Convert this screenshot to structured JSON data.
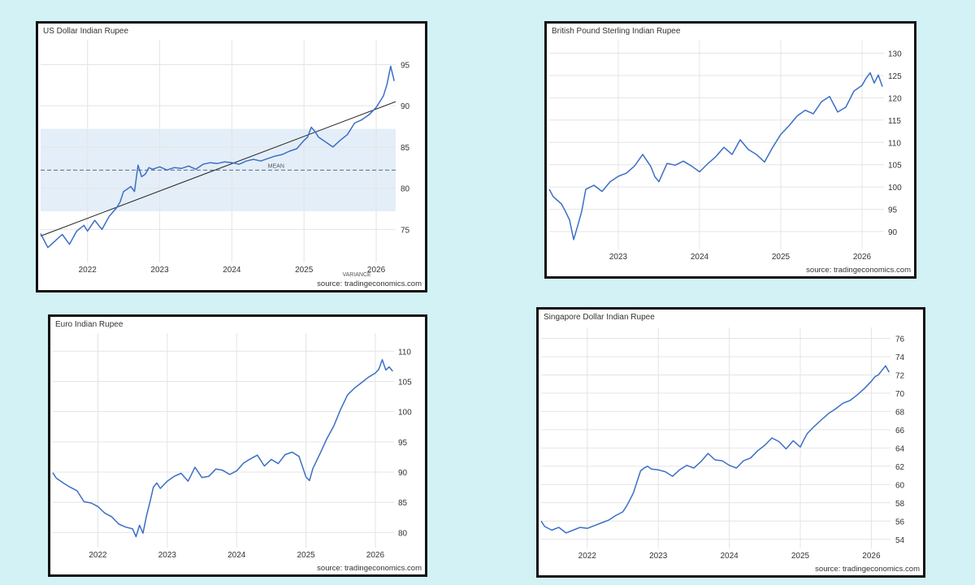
{
  "source_label": "source: tradingeconomics.com",
  "line_color": "#3a6fc4",
  "chart_data": [
    {
      "type": "line",
      "title": "US Dollar Indian Rupee",
      "x_tick_labels": [
        "2022",
        "2023",
        "2024",
        "2025",
        "2026"
      ],
      "y_ticks": [
        75,
        80,
        85,
        90,
        95
      ],
      "ylim": [
        71,
        98
      ],
      "xlim": [
        2021.35,
        2026.27
      ],
      "grid": true,
      "series": [
        {
          "x": [
            2021.35,
            2021.45,
            2021.55,
            2021.65,
            2021.75,
            2021.85,
            2021.95,
            2022.0,
            2022.1,
            2022.2,
            2022.3,
            2022.4,
            2022.45,
            2022.5,
            2022.55,
            2022.6,
            2022.65,
            2022.7,
            2022.75,
            2022.8,
            2022.85,
            2022.9,
            2023.0,
            2023.1,
            2023.2,
            2023.3,
            2023.4,
            2023.5,
            2023.6,
            2023.7,
            2023.8,
            2023.9,
            2024.0,
            2024.1,
            2024.2,
            2024.3,
            2024.4,
            2024.5,
            2024.6,
            2024.7,
            2024.8,
            2024.9,
            2025.0,
            2025.05,
            2025.1,
            2025.15,
            2025.2,
            2025.3,
            2025.4,
            2025.5,
            2025.6,
            2025.7,
            2025.8,
            2025.9,
            2026.0,
            2026.05,
            2026.1,
            2026.15,
            2026.2,
            2026.25
          ],
          "y": [
            74.5,
            72.8,
            73.6,
            74.4,
            73.2,
            74.8,
            75.5,
            74.8,
            76.1,
            75.0,
            76.6,
            77.6,
            78.3,
            79.6,
            79.9,
            80.2,
            79.6,
            82.8,
            81.4,
            81.7,
            82.5,
            82.3,
            82.6,
            82.2,
            82.5,
            82.4,
            82.7,
            82.3,
            82.9,
            83.1,
            83.0,
            83.2,
            83.1,
            82.9,
            83.3,
            83.5,
            83.3,
            83.6,
            83.9,
            84.1,
            84.5,
            84.8,
            85.8,
            86.2,
            87.4,
            86.9,
            86.2,
            85.6,
            85.0,
            85.8,
            86.5,
            87.9,
            88.3,
            88.9,
            89.8,
            90.5,
            91.2,
            92.6,
            94.8,
            93.0
          ]
        }
      ],
      "trendline": {
        "x": [
          2021.35,
          2026.27
        ],
        "y": [
          74.2,
          90.5
        ]
      },
      "mean": {
        "value": 82.2,
        "label": "MEAN"
      },
      "variance_band": {
        "low": 77.2,
        "high": 87.2,
        "label": "VARIANCE"
      }
    },
    {
      "type": "line",
      "title": "British Pound Sterling Indian Rupee",
      "x_tick_labels": [
        "2023",
        "2024",
        "2025",
        "2026"
      ],
      "y_ticks": [
        90,
        95,
        100,
        105,
        110,
        115,
        120,
        125,
        130
      ],
      "ylim": [
        86,
        133
      ],
      "xlim": [
        2022.15,
        2026.27
      ],
      "grid": true,
      "series": [
        {
          "x": [
            2022.15,
            2022.2,
            2022.3,
            2022.35,
            2022.4,
            2022.45,
            2022.5,
            2022.55,
            2022.6,
            2022.7,
            2022.8,
            2022.9,
            2023.0,
            2023.1,
            2023.2,
            2023.3,
            2023.4,
            2023.45,
            2023.5,
            2023.6,
            2023.7,
            2023.8,
            2023.9,
            2024.0,
            2024.1,
            2024.2,
            2024.3,
            2024.4,
            2024.5,
            2024.6,
            2024.7,
            2024.8,
            2024.9,
            2025.0,
            2025.1,
            2025.2,
            2025.3,
            2025.4,
            2025.5,
            2025.6,
            2025.7,
            2025.8,
            2025.9,
            2026.0,
            2026.05,
            2026.1,
            2026.15,
            2026.2,
            2026.25
          ],
          "y": [
            99.5,
            97.8,
            96.2,
            94.5,
            92.6,
            88.2,
            91.3,
            94.6,
            99.5,
            100.4,
            99.0,
            101.2,
            102.4,
            103.1,
            104.7,
            107.3,
            104.6,
            102.3,
            101.2,
            105.3,
            104.9,
            105.8,
            104.7,
            103.4,
            105.2,
            106.8,
            108.9,
            107.3,
            110.6,
            108.4,
            107.3,
            105.6,
            108.9,
            111.8,
            113.7,
            115.9,
            117.2,
            116.4,
            119.1,
            120.3,
            116.8,
            117.9,
            121.5,
            122.8,
            124.4,
            125.6,
            123.3,
            125.1,
            122.5
          ]
        }
      ]
    },
    {
      "type": "line",
      "title": "Euro Indian Rupee",
      "x_tick_labels": [
        "2022",
        "2023",
        "2024",
        "2025",
        "2026"
      ],
      "y_ticks": [
        80,
        85,
        90,
        95,
        100,
        105,
        110
      ],
      "ylim": [
        77.5,
        113
      ],
      "xlim": [
        2021.35,
        2026.27
      ],
      "grid": true,
      "series": [
        {
          "x": [
            2021.35,
            2021.4,
            2021.5,
            2021.6,
            2021.7,
            2021.8,
            2021.9,
            2022.0,
            2022.1,
            2022.2,
            2022.3,
            2022.4,
            2022.5,
            2022.55,
            2022.6,
            2022.65,
            2022.7,
            2022.75,
            2022.8,
            2022.85,
            2022.9,
            2023.0,
            2023.1,
            2023.2,
            2023.3,
            2023.4,
            2023.5,
            2023.6,
            2023.7,
            2023.8,
            2023.9,
            2024.0,
            2024.1,
            2024.2,
            2024.3,
            2024.4,
            2024.5,
            2024.6,
            2024.7,
            2024.8,
            2024.9,
            2025.0,
            2025.05,
            2025.1,
            2025.2,
            2025.3,
            2025.4,
            2025.5,
            2025.6,
            2025.7,
            2025.8,
            2025.9,
            2026.0,
            2026.05,
            2026.1,
            2026.15,
            2026.2,
            2026.25
          ],
          "y": [
            89.9,
            89.0,
            88.2,
            87.5,
            86.9,
            85.1,
            84.9,
            84.3,
            83.2,
            82.6,
            81.4,
            80.9,
            80.6,
            79.3,
            81.2,
            79.9,
            82.7,
            85.0,
            87.5,
            88.2,
            87.3,
            88.5,
            89.3,
            89.8,
            88.5,
            90.8,
            89.1,
            89.3,
            90.5,
            90.3,
            89.6,
            90.2,
            91.5,
            92.2,
            92.8,
            91.0,
            92.1,
            91.4,
            92.9,
            93.3,
            92.6,
            89.2,
            88.6,
            90.6,
            93.0,
            95.5,
            97.6,
            100.4,
            102.8,
            103.9,
            104.8,
            105.7,
            106.4,
            107.0,
            108.6,
            106.9,
            107.4,
            106.7
          ]
        }
      ]
    },
    {
      "type": "line",
      "title": "Singapore Dollar Indian Rupee",
      "x_tick_labels": [
        "2022",
        "2023",
        "2024",
        "2025",
        "2026"
      ],
      "y_ticks": [
        54,
        56,
        58,
        60,
        62,
        64,
        66,
        68,
        70,
        72,
        74,
        76
      ],
      "ylim": [
        53,
        77.2
      ],
      "xlim": [
        2021.35,
        2026.27
      ],
      "grid": true,
      "series": [
        {
          "x": [
            2021.35,
            2021.4,
            2021.5,
            2021.6,
            2021.7,
            2021.8,
            2021.9,
            2022.0,
            2022.1,
            2022.2,
            2022.3,
            2022.4,
            2022.5,
            2022.55,
            2022.6,
            2022.65,
            2022.7,
            2022.75,
            2022.8,
            2022.85,
            2022.9,
            2023.0,
            2023.1,
            2023.2,
            2023.3,
            2023.4,
            2023.5,
            2023.6,
            2023.7,
            2023.8,
            2023.9,
            2024.0,
            2024.1,
            2024.2,
            2024.3,
            2024.4,
            2024.5,
            2024.6,
            2024.7,
            2024.8,
            2024.9,
            2025.0,
            2025.05,
            2025.1,
            2025.2,
            2025.3,
            2025.4,
            2025.5,
            2025.6,
            2025.7,
            2025.8,
            2025.9,
            2026.0,
            2026.05,
            2026.1,
            2026.15,
            2026.2,
            2026.25
          ],
          "y": [
            56.0,
            55.4,
            55.0,
            55.3,
            54.7,
            55.0,
            55.3,
            55.2,
            55.5,
            55.8,
            56.1,
            56.6,
            57.0,
            57.6,
            58.3,
            59.1,
            60.3,
            61.5,
            61.8,
            62.0,
            61.7,
            61.6,
            61.4,
            60.9,
            61.6,
            62.1,
            61.8,
            62.5,
            63.4,
            62.7,
            62.6,
            62.1,
            61.8,
            62.6,
            62.9,
            63.7,
            64.3,
            65.1,
            64.7,
            63.9,
            64.8,
            64.1,
            64.9,
            65.6,
            66.4,
            67.1,
            67.8,
            68.3,
            68.9,
            69.2,
            69.8,
            70.5,
            71.3,
            71.8,
            72.0,
            72.5,
            73.0,
            72.3
          ]
        }
      ]
    }
  ]
}
